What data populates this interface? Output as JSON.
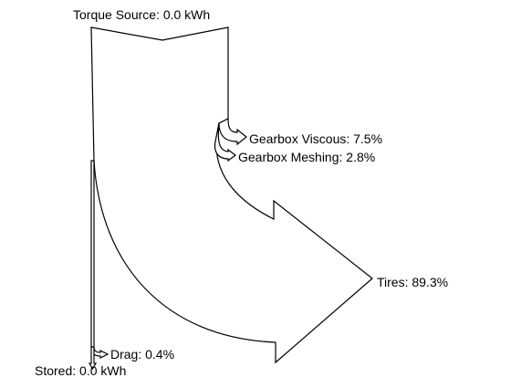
{
  "chart_data": {
    "type": "sankey",
    "source": {
      "label": "Torque Source: 0.0 kWh"
    },
    "outputs": [
      {
        "label": "Gearbox Viscous: 7.5%",
        "percent": 7.5
      },
      {
        "label": "Gearbox Meshing: 2.8%",
        "percent": 2.8
      },
      {
        "label": "Tires: 89.3%",
        "percent": 89.3
      },
      {
        "label": "Drag: 0.4%",
        "percent": 0.4
      }
    ],
    "sink": {
      "label": "Stored: 0.0 kWh"
    }
  },
  "colors": {
    "line": "#000000",
    "fill": "#ffffff",
    "background": "#ffffff"
  }
}
